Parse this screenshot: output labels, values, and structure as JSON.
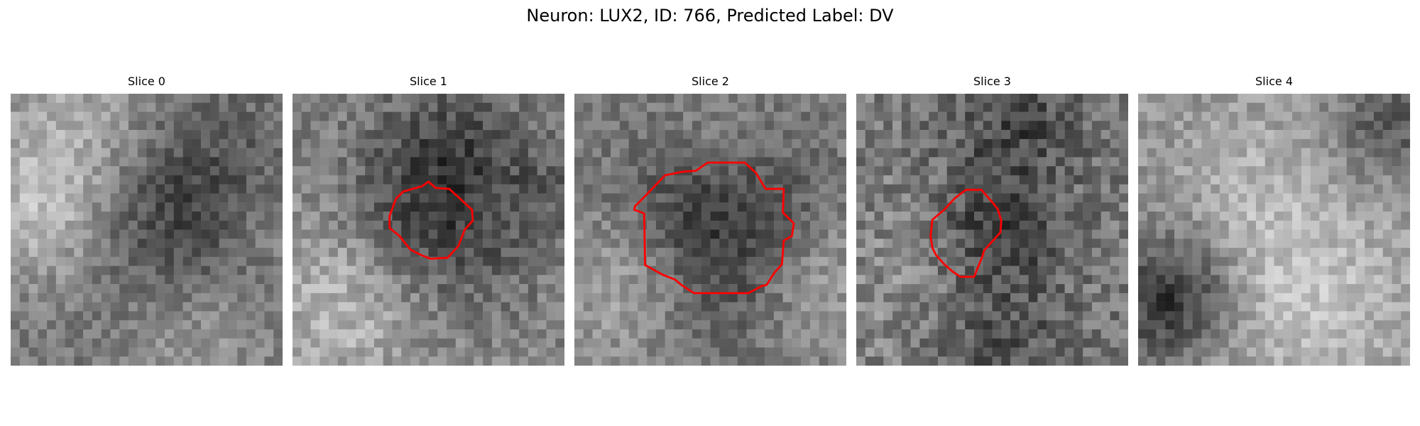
{
  "figure": {
    "title": "Neuron: LUX2, ID: 766, Predicted Label: DV",
    "contour_color": "#ff0000"
  },
  "panels": [
    {
      "title": "Slice 0",
      "has_contour": false
    },
    {
      "title": "Slice 1",
      "has_contour": true
    },
    {
      "title": "Slice 2",
      "has_contour": true
    },
    {
      "title": "Slice 3",
      "has_contour": true
    },
    {
      "title": "Slice 4",
      "has_contour": false
    }
  ]
}
